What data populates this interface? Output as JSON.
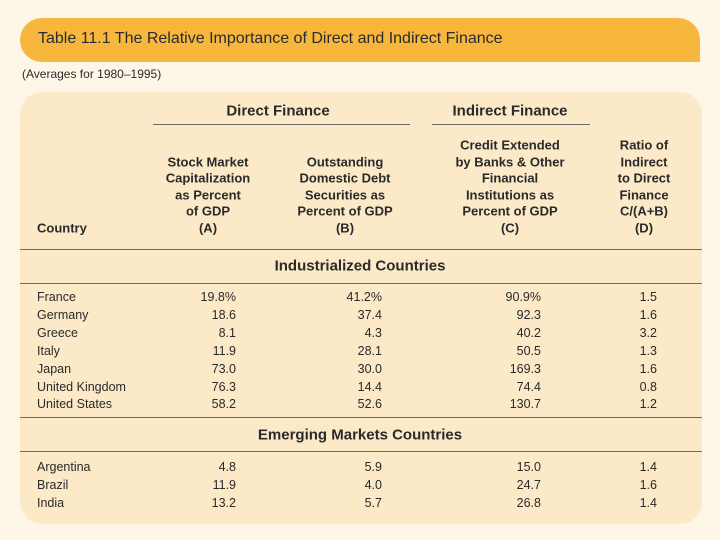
{
  "header": {
    "title": "Table 11.1 The Relative Importance of Direct and Indirect Finance",
    "subtitle": "(Averages for 1980–1995)"
  },
  "table": {
    "groups": [
      "Direct Finance",
      "Indirect Finance"
    ],
    "country_header": "Country",
    "columns": [
      [
        "Stock Market",
        "Capitalization",
        "as Percent",
        "of GDP",
        "(A)"
      ],
      [
        "Outstanding",
        "Domestic Debt",
        "Securities as",
        "Percent of GDP",
        "(B)"
      ],
      [
        "Credit Extended",
        "by Banks & Other",
        "Financial",
        "Institutions as",
        "Percent of GDP",
        "(C)"
      ],
      [
        "Ratio of",
        "Indirect",
        "to Direct",
        "Finance",
        "C/(A+B)",
        "(D)"
      ]
    ],
    "sections": [
      {
        "title": "Industrialized Countries",
        "rows": [
          [
            "France",
            "19.8%",
            "41.2%",
            "90.9%",
            "1.5"
          ],
          [
            "Germany",
            "18.6",
            "37.4",
            "92.3",
            "1.6"
          ],
          [
            "Greece",
            "8.1",
            "4.3",
            "40.2",
            "3.2"
          ],
          [
            "Italy",
            "11.9",
            "28.1",
            "50.5",
            "1.3"
          ],
          [
            "Japan",
            "73.0",
            "30.0",
            "169.3",
            "1.6"
          ],
          [
            "United Kingdom",
            "76.3",
            "14.4",
            "74.4",
            "0.8"
          ],
          [
            "United States",
            "58.2",
            "52.6",
            "130.7",
            "1.2"
          ]
        ]
      },
      {
        "title": "Emerging Markets Countries",
        "rows": [
          [
            "Argentina",
            "4.8",
            "5.9",
            "15.0",
            "1.4"
          ],
          [
            "Brazil",
            "11.9",
            "4.0",
            "24.7",
            "1.6"
          ],
          [
            "India",
            "13.2",
            "5.7",
            "26.8",
            "1.4"
          ]
        ]
      }
    ]
  }
}
